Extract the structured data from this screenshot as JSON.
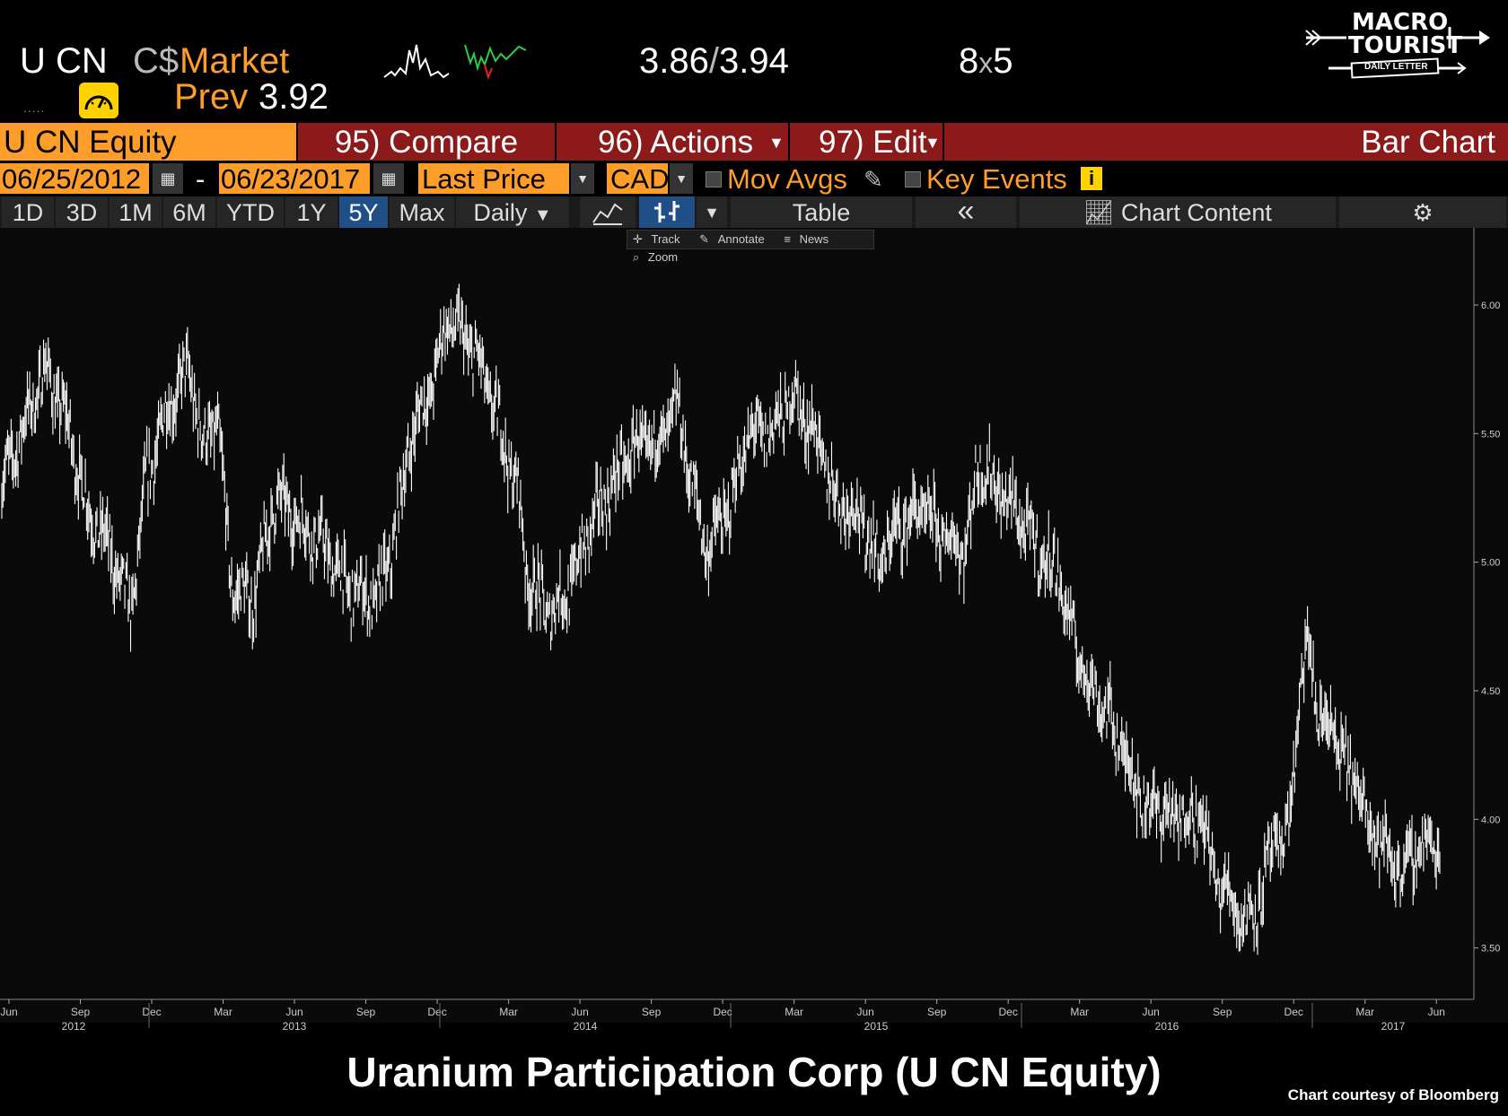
{
  "header": {
    "ticker": "U CN",
    "currency": "C$",
    "market_label": "Market",
    "prev_label": "Prev",
    "prev_value": "3.92",
    "bid_ask_bid": "3.86",
    "bid_ask_sep": "/",
    "bid_ask_ask": "3.94",
    "size_bid": "8",
    "size_sep": "x",
    "size_ask": "5",
    "dots": "....."
  },
  "logo": {
    "line1": "MACRO",
    "line2": "TOURIST",
    "line3": "DAILY LETTER"
  },
  "toolbar1": {
    "security": "U CN Equity",
    "compare": "95) Compare",
    "actions": "96) Actions",
    "edit": "97) Edit",
    "chart_type": "Bar Chart"
  },
  "toolbar2": {
    "start_date": "06/25/2012",
    "date_sep": "-",
    "end_date": "06/23/2017",
    "field": "Last Price",
    "currency": "CAD",
    "mov_avgs": "Mov Avgs",
    "key_events": "Key Events"
  },
  "toolbar3": {
    "periods": [
      "1D",
      "3D",
      "1M",
      "6M",
      "YTD",
      "1Y",
      "5Y",
      "Max"
    ],
    "active_period": "5Y",
    "frequency": "Daily",
    "table": "Table",
    "collapse": "«",
    "chart_content": "Chart Content"
  },
  "tools": [
    "Track",
    "Annotate",
    "News",
    "Zoom"
  ],
  "chart_data": {
    "type": "bar",
    "ylim": [
      3.3,
      6.3
    ],
    "y_ticks": [
      "6.00",
      "5.50",
      "5.00",
      "4.50",
      "4.00",
      "3.50"
    ],
    "x_month_ticks": [
      "Jun",
      "Sep",
      "Dec",
      "Mar",
      "Jun",
      "Sep",
      "Dec",
      "Mar",
      "Jun",
      "Sep",
      "Dec",
      "Mar",
      "Jun",
      "Sep",
      "Dec",
      "Mar",
      "Jun",
      "Sep",
      "Dec",
      "Mar",
      "Jun"
    ],
    "x_year_labels": [
      "2012",
      "2013",
      "2014",
      "2015",
      "2016",
      "2017"
    ],
    "series": [
      {
        "values": [
          [
            0.0,
            5.3
          ],
          [
            0.03,
            5.75
          ],
          [
            0.045,
            5.55
          ],
          [
            0.06,
            5.2
          ],
          [
            0.075,
            5.05
          ],
          [
            0.09,
            4.8
          ],
          [
            0.1,
            5.3
          ],
          [
            0.115,
            5.6
          ],
          [
            0.13,
            5.75
          ],
          [
            0.14,
            5.45
          ],
          [
            0.15,
            5.55
          ],
          [
            0.16,
            4.9
          ],
          [
            0.175,
            4.85
          ],
          [
            0.19,
            5.25
          ],
          [
            0.21,
            5.15
          ],
          [
            0.225,
            5.05
          ],
          [
            0.24,
            4.9
          ],
          [
            0.26,
            4.85
          ],
          [
            0.27,
            5.0
          ],
          [
            0.285,
            5.5
          ],
          [
            0.3,
            5.7
          ],
          [
            0.31,
            5.95
          ],
          [
            0.33,
            5.8
          ],
          [
            0.345,
            5.55
          ],
          [
            0.36,
            5.25
          ],
          [
            0.365,
            4.95
          ],
          [
            0.38,
            4.8
          ],
          [
            0.395,
            4.9
          ],
          [
            0.41,
            5.15
          ],
          [
            0.425,
            5.3
          ],
          [
            0.44,
            5.45
          ],
          [
            0.455,
            5.45
          ],
          [
            0.47,
            5.6
          ],
          [
            0.48,
            5.3
          ],
          [
            0.49,
            5.05
          ],
          [
            0.505,
            5.2
          ],
          [
            0.52,
            5.5
          ],
          [
            0.535,
            5.5
          ],
          [
            0.55,
            5.65
          ],
          [
            0.565,
            5.5
          ],
          [
            0.58,
            5.25
          ],
          [
            0.595,
            5.2
          ],
          [
            0.61,
            5.0
          ],
          [
            0.625,
            5.15
          ],
          [
            0.64,
            5.2
          ],
          [
            0.655,
            5.1
          ],
          [
            0.67,
            5.05
          ],
          [
            0.68,
            5.4
          ],
          [
            0.69,
            5.3
          ],
          [
            0.705,
            5.2
          ],
          [
            0.72,
            5.05
          ],
          [
            0.735,
            4.95
          ],
          [
            0.745,
            4.7
          ],
          [
            0.755,
            4.55
          ],
          [
            0.77,
            4.4
          ],
          [
            0.785,
            4.2
          ],
          [
            0.795,
            4.05
          ],
          [
            0.805,
            4.05
          ],
          [
            0.815,
            4.0
          ],
          [
            0.825,
            4.02
          ],
          [
            0.835,
            4.0
          ],
          [
            0.845,
            3.75
          ],
          [
            0.855,
            3.7
          ],
          [
            0.865,
            3.6
          ],
          [
            0.875,
            3.7
          ],
          [
            0.885,
            3.9
          ],
          [
            0.895,
            3.95
          ],
          [
            0.9,
            4.3
          ],
          [
            0.905,
            4.6
          ],
          [
            0.91,
            4.65
          ],
          [
            0.915,
            4.4
          ],
          [
            0.925,
            4.35
          ],
          [
            0.935,
            4.2
          ],
          [
            0.945,
            4.1
          ],
          [
            0.955,
            3.95
          ],
          [
            0.965,
            3.85
          ],
          [
            0.975,
            3.8
          ],
          [
            0.985,
            3.9
          ]
        ]
      }
    ]
  },
  "title": "Uranium Participation Corp (U CN Equity)",
  "credit": "Chart courtesy of Bloomberg",
  "colors": {
    "amber": "#ff9d2b",
    "toolbar_red": "#8c1a1a",
    "active_blue": "#1f4f86",
    "bars": "#ffffff"
  }
}
